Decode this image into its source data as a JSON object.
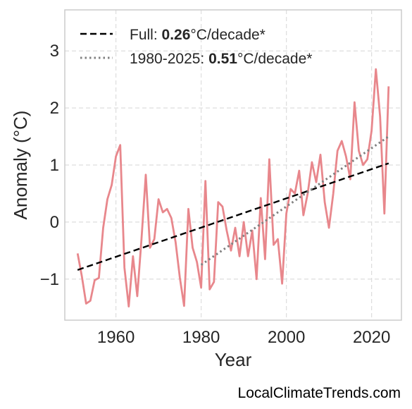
{
  "watermark": "LocalClimateTrends.com",
  "chart_data": {
    "type": "line",
    "xlabel": "Year",
    "ylabel": "Anomaly (°C)",
    "xlim": [
      1948,
      2027
    ],
    "ylim": [
      -1.72,
      3.72
    ],
    "xticks": [
      1960,
      1980,
      2000,
      2020
    ],
    "yticks": [
      -1,
      0,
      1,
      2,
      3
    ],
    "ytick_labels": [
      "−1",
      "0",
      "1",
      "2",
      "3"
    ],
    "grid": true,
    "legend_position": "top-left",
    "colors": {
      "series": "#e8878c",
      "full_trend": "#000000",
      "recent_trend": "#808080",
      "grid": "#dddddd",
      "frame": "#cccccc"
    },
    "series": [
      {
        "x": [
          1951,
          1952,
          1953,
          1954,
          1955,
          1956,
          1957,
          1958,
          1959,
          1960,
          1961,
          1962,
          1963,
          1964,
          1965,
          1966,
          1967,
          1968,
          1969,
          1970,
          1971,
          1972,
          1973,
          1974,
          1975,
          1976,
          1977,
          1978,
          1979,
          1980,
          1981,
          1982,
          1983,
          1984,
          1985,
          1986,
          1987,
          1988,
          1989,
          1990,
          1991,
          1992,
          1993,
          1994,
          1995,
          1996,
          1997,
          1998,
          1999,
          2000,
          2001,
          2002,
          2003,
          2004,
          2005,
          2006,
          2007,
          2008,
          2009,
          2010,
          2011,
          2012,
          2013,
          2014,
          2015,
          2016,
          2017,
          2018,
          2019,
          2020,
          2021,
          2022,
          2023,
          2024
        ],
        "values": [
          -0.55,
          -0.95,
          -1.43,
          -1.38,
          -1.02,
          -0.98,
          -0.1,
          0.4,
          0.65,
          1.15,
          1.35,
          -0.8,
          -1.48,
          -0.6,
          -1.3,
          -0.3,
          0.83,
          -0.45,
          -0.3,
          0.4,
          0.17,
          0.23,
          0.07,
          -0.35,
          -0.98,
          -1.47,
          0.23,
          -0.45,
          -0.7,
          -1.15,
          0.72,
          -1.18,
          -1.05,
          0.35,
          0.27,
          -0.15,
          -0.5,
          -0.1,
          -0.6,
          0.0,
          -0.6,
          -0.15,
          -1.0,
          0.42,
          -0.65,
          1.1,
          -0.4,
          -0.3,
          -1.08,
          0.15,
          0.58,
          0.5,
          0.9,
          0.12,
          0.5,
          1.05,
          0.7,
          1.18,
          0.35,
          -0.1,
          0.5,
          1.25,
          1.42,
          1.15,
          0.75,
          2.1,
          1.25,
          1.0,
          1.1,
          1.6,
          2.68,
          1.85,
          0.15,
          2.38
        ]
      }
    ],
    "trend_lines": [
      {
        "label_prefix": "Full: ",
        "rate": "0.26",
        "label_suffix": "°C/decade*",
        "style": "dashed",
        "x": [
          1951,
          2024
        ],
        "y": [
          -0.84,
          1.03
        ]
      },
      {
        "label_prefix": "1980-2025: ",
        "rate": "0.51",
        "label_suffix": "°C/decade*",
        "style": "dotted",
        "x": [
          1980,
          2024
        ],
        "y": [
          -0.75,
          1.5
        ]
      }
    ]
  }
}
